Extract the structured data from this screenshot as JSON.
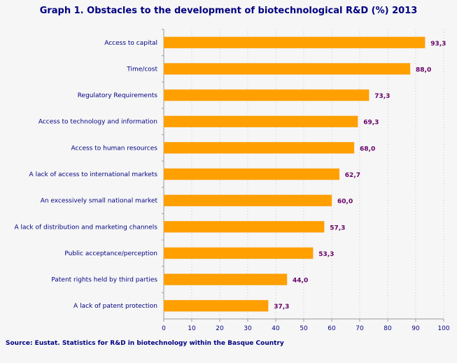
{
  "chart_data": {
    "type": "bar",
    "orientation": "horizontal",
    "title": "Graph 1. Obstacles to the development of biotechnological R&D (%) 2013",
    "categories": [
      "Access to capital",
      "Time/cost",
      "Regulatory Requirements",
      "Access to technology and information",
      "Access to human resources",
      "A lack of access to international markets",
      "An excessively small national market",
      "A lack of distribution and marketing channels",
      "Public acceptance/perception",
      "Patent rights held by third parties",
      "A lack of patent protection"
    ],
    "values": [
      93.3,
      88.0,
      73.3,
      69.3,
      68.0,
      62.7,
      60.0,
      57.3,
      53.3,
      44.0,
      37.3
    ],
    "data_labels": [
      "93,3",
      "88,0",
      "73,3",
      "69,3",
      "68,0",
      "62,7",
      "60,0",
      "57,3",
      "53,3",
      "44,0",
      "37,3"
    ],
    "xlim": [
      0,
      100
    ],
    "xticks": [
      "0",
      "10",
      "20",
      "30",
      "40",
      "50",
      "60",
      "70",
      "80",
      "90",
      "100"
    ],
    "xlabel": "",
    "ylabel": "",
    "grid": "vertical dotted",
    "colors": {
      "bar": "#ff9f00",
      "text": "#000080",
      "value_label": "#660066"
    },
    "source": "Source: Eustat. Statistics for R&D in biotechnology within the Basque Country"
  }
}
